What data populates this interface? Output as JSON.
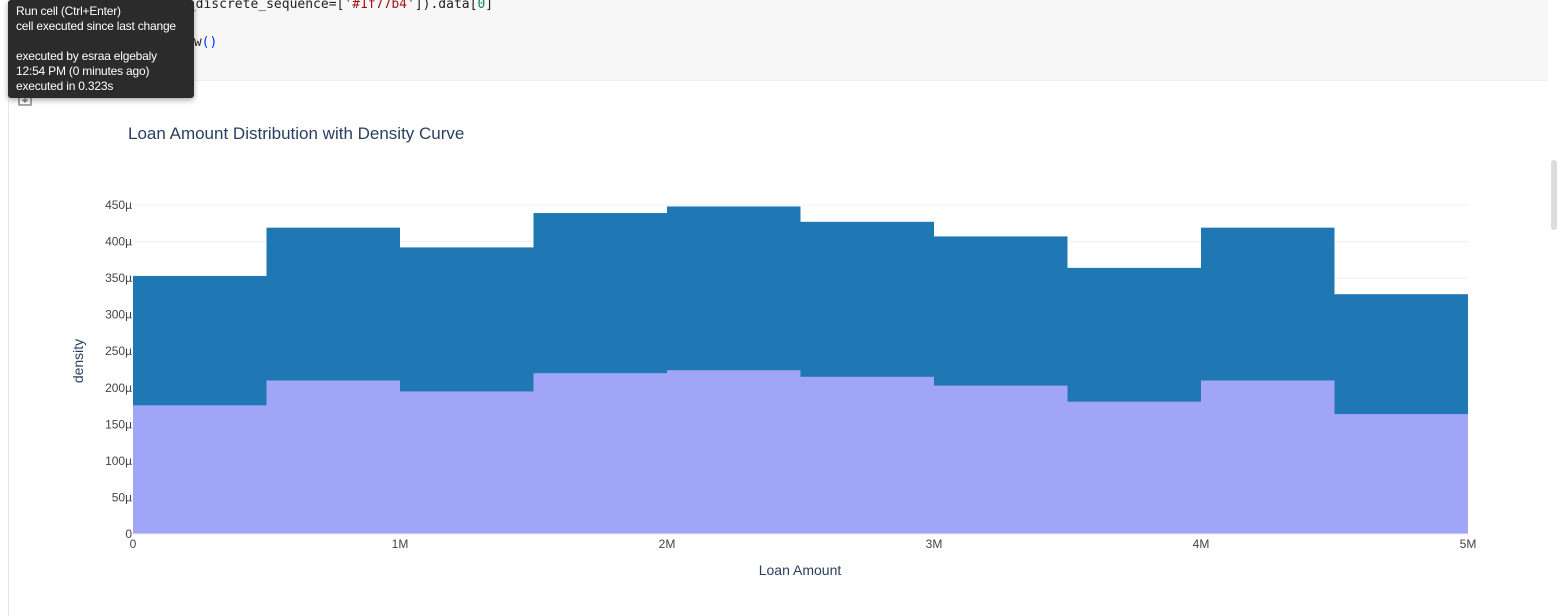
{
  "code_cell": {
    "line1_prefix": "r_discrete_sequence=[",
    "line1_string": "'#1f77b4'",
    "line1_suffix": "]).data[",
    "line1_index": "0",
    "line1_close": "]",
    "line2_prefix": "ow",
    "line2_parens": "()"
  },
  "tooltip": {
    "line1": "Run cell (Ctrl+Enter)",
    "line2": "cell executed since last change",
    "line3": "executed by esraa elgebaly",
    "line4": "12:54 PM (0 minutes ago)",
    "line5": "executed in 0.323s"
  },
  "output_icon": "output-toggle-icon",
  "chart_data": {
    "type": "bar",
    "title": "Loan Amount Distribution with Density Curve",
    "xlabel": "Loan Amount",
    "ylabel": "density",
    "xlim": [
      0,
      5000000
    ],
    "ylim": [
      0,
      450
    ],
    "y_unit_note": "µ",
    "x_ticks": [
      {
        "value": 0,
        "label": "0"
      },
      {
        "value": 1000000,
        "label": "1M"
      },
      {
        "value": 2000000,
        "label": "2M"
      },
      {
        "value": 3000000,
        "label": "3M"
      },
      {
        "value": 4000000,
        "label": "4M"
      },
      {
        "value": 5000000,
        "label": "5M"
      }
    ],
    "y_ticks": [
      {
        "value": 0,
        "label": "0"
      },
      {
        "value": 50,
        "label": "50µ"
      },
      {
        "value": 100,
        "label": "100µ"
      },
      {
        "value": 150,
        "label": "150µ"
      },
      {
        "value": 200,
        "label": "200µ"
      },
      {
        "value": 250,
        "label": "250µ"
      },
      {
        "value": 300,
        "label": "300µ"
      },
      {
        "value": 350,
        "label": "350µ"
      },
      {
        "value": 400,
        "label": "400µ"
      },
      {
        "value": 450,
        "label": "450µ"
      }
    ],
    "bin_edges": [
      0,
      500000,
      1000000,
      1500000,
      2000000,
      2500000,
      3000000,
      3500000,
      4000000,
      4500000,
      5000000
    ],
    "series": [
      {
        "color": "#1f77b4",
        "values": [
          353,
          419,
          392,
          439,
          448,
          427,
          407,
          364,
          419,
          328
        ]
      },
      {
        "color": "#a0a5f8",
        "values": [
          176,
          210,
          195,
          220,
          224,
          215,
          203,
          181,
          210,
          164
        ]
      }
    ],
    "grid": true
  }
}
